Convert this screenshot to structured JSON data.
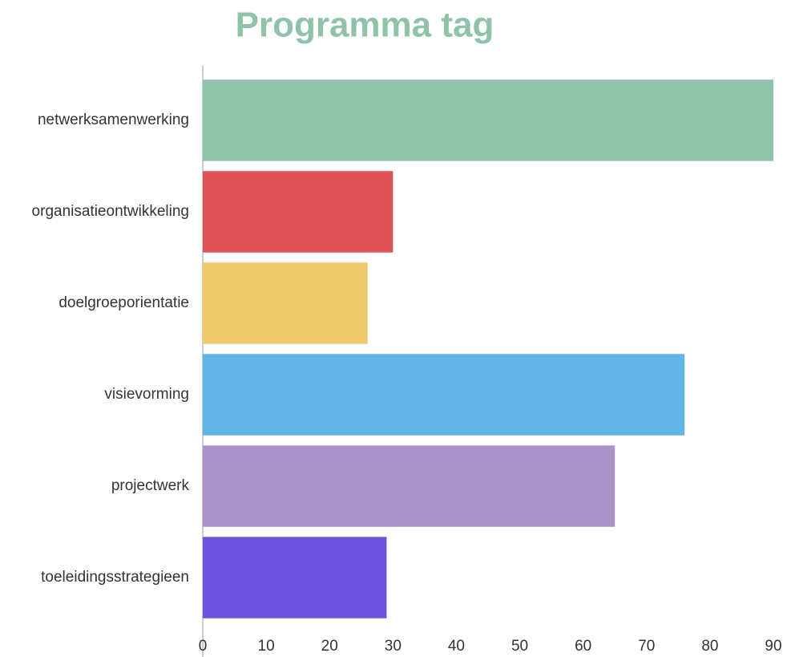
{
  "chart_data": {
    "type": "bar",
    "orientation": "horizontal",
    "title": "Programma tag",
    "categories": [
      "netwerksamenwerking",
      "organisatieontwikkeling",
      "doelgroeporientatie",
      "visievorming",
      "projectwerk",
      "toeleidingsstrategieen"
    ],
    "values": [
      90,
      30,
      26,
      76,
      65,
      29
    ],
    "colors": [
      "#8fc3a9",
      "#dd5355",
      "#eeca6a",
      "#61b5e6",
      "#ab92c9",
      "#6c53dd"
    ],
    "xlim": [
      0,
      90
    ],
    "xticks": [
      0,
      10,
      20,
      30,
      40,
      50,
      60,
      70,
      80,
      90
    ],
    "grid": false
  }
}
